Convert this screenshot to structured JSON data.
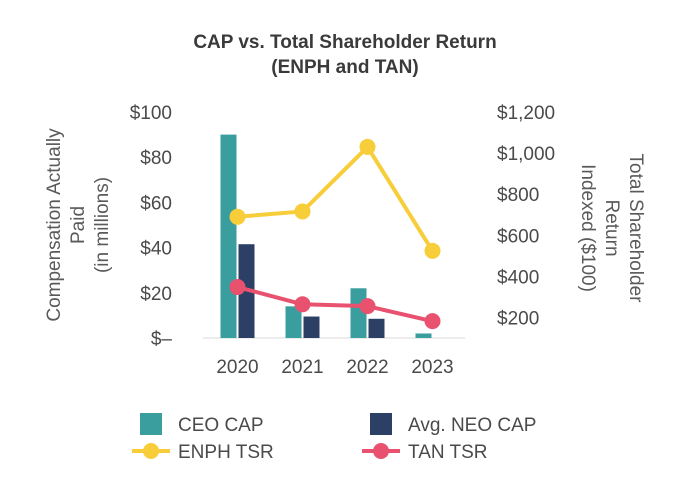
{
  "chart_data": {
    "type": "bar",
    "title_lines": [
      "CAP vs. Total Shareholder Return",
      "(ENPH and TAN)"
    ],
    "categories": [
      "2020",
      "2021",
      "2022",
      "2023"
    ],
    "y_left": {
      "label_lines": [
        "Compensation Actually",
        "Paid",
        "(in millions)"
      ],
      "range": [
        0,
        100
      ],
      "ticks": [
        0,
        20,
        40,
        60,
        80,
        100
      ],
      "tick_labels": [
        "$–",
        "$20",
        "$40",
        "$60",
        "$80",
        "$100"
      ]
    },
    "y_right": {
      "label_lines": [
        "Total Shareholder",
        "Return",
        "Indexed ($100)"
      ],
      "range": [
        100,
        1200
      ],
      "ticks": [
        200,
        400,
        600,
        800,
        1000,
        1200
      ],
      "tick_labels": [
        "$200",
        "$400",
        "$600",
        "$800",
        "$1,000",
        "$1,200"
      ]
    },
    "bar_series": [
      {
        "name": "CEO CAP",
        "axis": "left",
        "color": "#3a9e9e",
        "values": [
          90,
          14,
          22,
          2
        ]
      },
      {
        "name": "Avg. NEO CAP",
        "axis": "left",
        "color": "#2c4066",
        "values": [
          41.5,
          9.5,
          8.5,
          0
        ]
      }
    ],
    "line_series": [
      {
        "name": "ENPH TSR",
        "axis": "right",
        "color": "#f7cd3a",
        "values": [
          690,
          716,
          1030,
          524
        ]
      },
      {
        "name": "TAN TSR",
        "axis": "right",
        "color": "#e8526f",
        "values": [
          348,
          264,
          255,
          182
        ]
      }
    ],
    "legend_order": [
      "CEO CAP",
      "Avg. NEO CAP",
      "ENPH TSR",
      "TAN TSR"
    ],
    "legend_placement": "bottom",
    "grid": false
  }
}
